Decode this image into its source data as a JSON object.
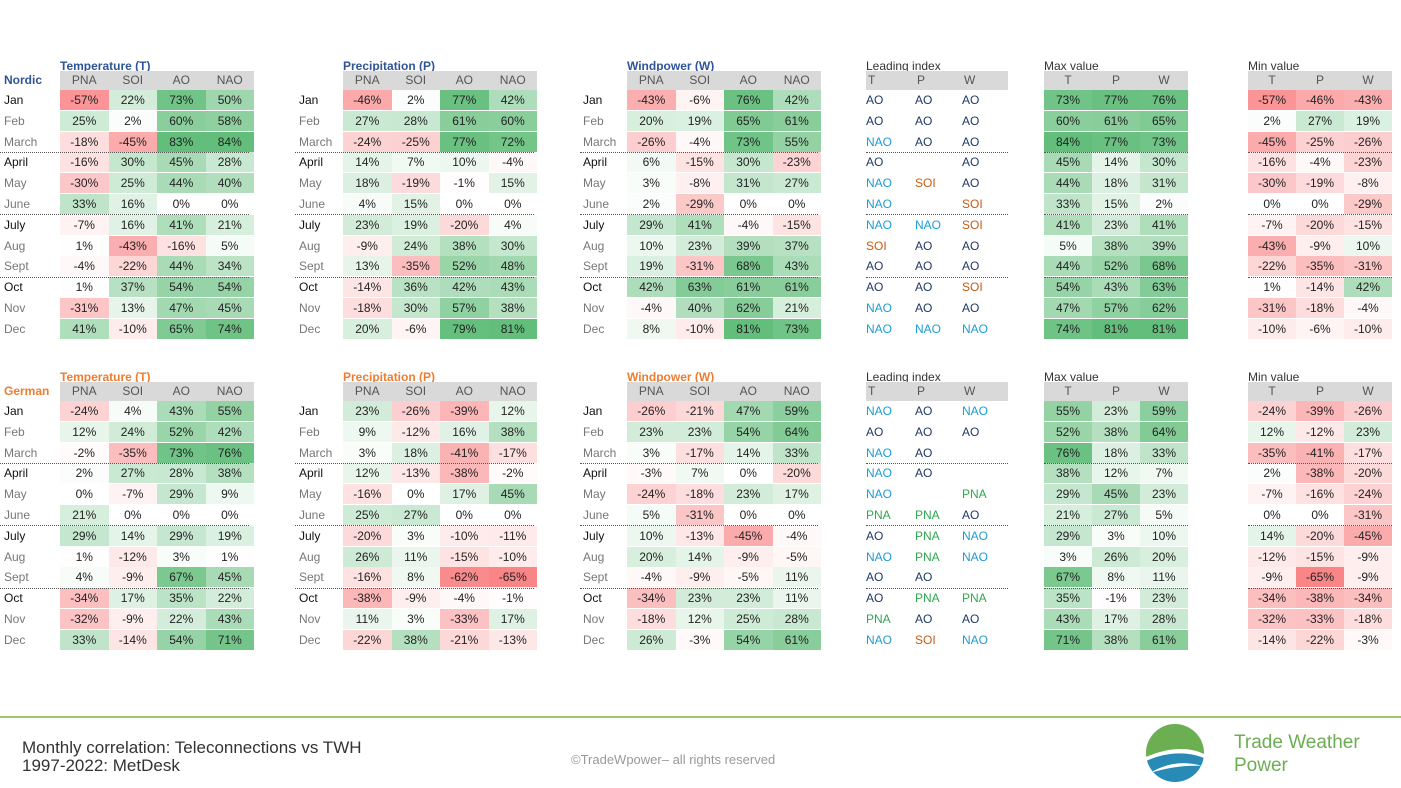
{
  "colors": {
    "positive": "#63be7b",
    "negative": "#f8696b",
    "neutral": "#ffffff",
    "title_nordic": "#2f5597",
    "title_german": "#ed7d31",
    "idx_AO": "#1f3864",
    "idx_NAO": "#1b9bd7",
    "idx_SOI": "#c55a11",
    "idx_PNA": "#2fa84f",
    "accent_line": "#9dc76b",
    "brand": "#6cae52"
  },
  "months": [
    "Jan",
    "Feb",
    "March",
    "April",
    "May",
    "June",
    "July",
    "Aug",
    "Sept",
    "Oct",
    "Nov",
    "Dec"
  ],
  "bold_months": [
    0,
    3,
    6,
    9
  ],
  "index_cols": [
    "PNA",
    "SOI",
    "AO",
    "NAO"
  ],
  "tpw_cols": [
    "T",
    "P",
    "W"
  ],
  "panels": {
    "leading_title": "Leading index",
    "max_title": "Max value",
    "min_title": "Min value"
  },
  "sections": [
    {
      "region": "Nordic",
      "tables": [
        {
          "title": "Temperature (T)",
          "rows": [
            [
              -57,
              22,
              73,
              50
            ],
            [
              25,
              2,
              60,
              58
            ],
            [
              -18,
              -45,
              83,
              84
            ],
            [
              -16,
              30,
              45,
              28
            ],
            [
              -30,
              25,
              44,
              40
            ],
            [
              33,
              16,
              0,
              0
            ],
            [
              -7,
              16,
              41,
              21
            ],
            [
              1,
              -43,
              -16,
              5
            ],
            [
              -4,
              -22,
              44,
              34
            ],
            [
              1,
              37,
              54,
              54
            ],
            [
              -31,
              13,
              47,
              45
            ],
            [
              41,
              -10,
              65,
              74
            ]
          ]
        },
        {
          "title": "Precipitation (P)",
          "rows": [
            [
              -46,
              2,
              77,
              42
            ],
            [
              27,
              28,
              61,
              60
            ],
            [
              -24,
              -25,
              77,
              72
            ],
            [
              14,
              7,
              10,
              -4
            ],
            [
              18,
              -19,
              -1,
              15
            ],
            [
              4,
              15,
              0,
              0
            ],
            [
              23,
              19,
              -20,
              4
            ],
            [
              -9,
              24,
              38,
              30
            ],
            [
              13,
              -35,
              52,
              48
            ],
            [
              -14,
              36,
              42,
              43
            ],
            [
              -18,
              30,
              57,
              38
            ],
            [
              20,
              -6,
              79,
              81
            ]
          ]
        },
        {
          "title": "Windpower (W)",
          "rows": [
            [
              -43,
              -6,
              76,
              42
            ],
            [
              20,
              19,
              65,
              61
            ],
            [
              -26,
              -4,
              73,
              55
            ],
            [
              6,
              -15,
              30,
              -23
            ],
            [
              3,
              -8,
              31,
              27
            ],
            [
              2,
              -29,
              0,
              0
            ],
            [
              29,
              41,
              -4,
              -15
            ],
            [
              10,
              23,
              39,
              37
            ],
            [
              19,
              -31,
              68,
              43
            ],
            [
              42,
              63,
              61,
              61
            ],
            [
              -4,
              40,
              62,
              21
            ],
            [
              8,
              -10,
              81,
              73
            ]
          ]
        }
      ],
      "leading": [
        [
          "AO",
          "AO",
          "AO"
        ],
        [
          "AO",
          "AO",
          "AO"
        ],
        [
          "NAO",
          "AO",
          "AO"
        ],
        [
          "AO",
          "",
          "AO"
        ],
        [
          "NAO",
          "SOI",
          "AO"
        ],
        [
          "NAO",
          "",
          "SOI"
        ],
        [
          "NAO",
          "NAO",
          "SOI"
        ],
        [
          "SOI",
          "AO",
          "AO"
        ],
        [
          "AO",
          "AO",
          "AO"
        ],
        [
          "AO",
          "AO",
          "SOI"
        ],
        [
          "NAO",
          "AO",
          "AO"
        ],
        [
          "NAO",
          "NAO",
          "NAO"
        ]
      ],
      "max": [
        [
          73,
          77,
          76
        ],
        [
          60,
          61,
          65
        ],
        [
          84,
          77,
          73
        ],
        [
          45,
          14,
          30
        ],
        [
          44,
          18,
          31
        ],
        [
          33,
          15,
          2
        ],
        [
          41,
          23,
          41
        ],
        [
          5,
          38,
          39
        ],
        [
          44,
          52,
          68
        ],
        [
          54,
          43,
          63
        ],
        [
          47,
          57,
          62
        ],
        [
          74,
          81,
          81
        ]
      ],
      "min": [
        [
          -57,
          -46,
          -43
        ],
        [
          2,
          27,
          19
        ],
        [
          -45,
          -25,
          -26
        ],
        [
          -16,
          -4,
          -23
        ],
        [
          -30,
          -19,
          -8
        ],
        [
          0,
          0,
          -29
        ],
        [
          -7,
          -20,
          -15
        ],
        [
          -43,
          -9,
          10
        ],
        [
          -22,
          -35,
          -31
        ],
        [
          1,
          -14,
          42
        ],
        [
          -31,
          -18,
          -4
        ],
        [
          -10,
          -6,
          -10
        ]
      ]
    },
    {
      "region": "German",
      "tables": [
        {
          "title": "Temperature (T)",
          "rows": [
            [
              -24,
              4,
              43,
              55
            ],
            [
              12,
              24,
              52,
              42
            ],
            [
              -2,
              -35,
              73,
              76
            ],
            [
              2,
              27,
              28,
              38
            ],
            [
              0,
              -7,
              29,
              9
            ],
            [
              21,
              0,
              0,
              0
            ],
            [
              29,
              14,
              29,
              19
            ],
            [
              1,
              -12,
              3,
              1
            ],
            [
              4,
              -9,
              67,
              45
            ],
            [
              -34,
              17,
              35,
              22
            ],
            [
              -32,
              -9,
              22,
              43
            ],
            [
              33,
              -14,
              54,
              71
            ]
          ]
        },
        {
          "title": "Precipitation (P)",
          "rows": [
            [
              23,
              -26,
              -39,
              12
            ],
            [
              9,
              -12,
              16,
              38
            ],
            [
              3,
              18,
              -41,
              -17
            ],
            [
              12,
              -13,
              -38,
              -2
            ],
            [
              -16,
              0,
              17,
              45
            ],
            [
              25,
              27,
              0,
              0
            ],
            [
              -20,
              3,
              -10,
              -11
            ],
            [
              26,
              11,
              -15,
              -10
            ],
            [
              -16,
              8,
              -62,
              -65
            ],
            [
              -38,
              -9,
              -4,
              -1
            ],
            [
              11,
              3,
              -33,
              17
            ],
            [
              -22,
              38,
              -21,
              -13
            ]
          ]
        },
        {
          "title": "Windpower (W)",
          "rows": [
            [
              -26,
              -21,
              47,
              59
            ],
            [
              23,
              23,
              54,
              64
            ],
            [
              3,
              -17,
              14,
              33
            ],
            [
              -3,
              7,
              0,
              -20
            ],
            [
              -24,
              -18,
              23,
              17
            ],
            [
              5,
              -31,
              0,
              0
            ],
            [
              10,
              -13,
              -45,
              -4
            ],
            [
              20,
              14,
              -9,
              -5
            ],
            [
              -4,
              -9,
              -5,
              11
            ],
            [
              -34,
              23,
              23,
              11
            ],
            [
              -18,
              12,
              25,
              28
            ],
            [
              26,
              -3,
              54,
              61
            ]
          ]
        }
      ],
      "leading": [
        [
          "NAO",
          "AO",
          "NAO"
        ],
        [
          "AO",
          "AO",
          "AO"
        ],
        [
          "NAO",
          "AO",
          ""
        ],
        [
          "NAO",
          "AO",
          ""
        ],
        [
          "NAO",
          "",
          "PNA"
        ],
        [
          "PNA",
          "PNA",
          "AO"
        ],
        [
          "AO",
          "PNA",
          "NAO"
        ],
        [
          "NAO",
          "PNA",
          "NAO"
        ],
        [
          "AO",
          "AO",
          ""
        ],
        [
          "AO",
          "PNA",
          "PNA"
        ],
        [
          "PNA",
          "AO",
          "AO"
        ],
        [
          "NAO",
          "SOI",
          "NAO"
        ]
      ],
      "max": [
        [
          55,
          23,
          59
        ],
        [
          52,
          38,
          64
        ],
        [
          76,
          18,
          33
        ],
        [
          38,
          12,
          7
        ],
        [
          29,
          45,
          23
        ],
        [
          21,
          27,
          5
        ],
        [
          29,
          3,
          10
        ],
        [
          3,
          26,
          20
        ],
        [
          67,
          8,
          11
        ],
        [
          35,
          -1,
          23
        ],
        [
          43,
          17,
          28
        ],
        [
          71,
          38,
          61
        ]
      ],
      "min": [
        [
          -24,
          -39,
          -26
        ],
        [
          12,
          -12,
          23
        ],
        [
          -35,
          -41,
          -17
        ],
        [
          2,
          -38,
          -20
        ],
        [
          -7,
          -16,
          -24
        ],
        [
          0,
          0,
          -31
        ],
        [
          14,
          -20,
          -45
        ],
        [
          -12,
          -15,
          -9
        ],
        [
          -9,
          -65,
          -9
        ],
        [
          -34,
          -38,
          -34
        ],
        [
          -32,
          -33,
          -18
        ],
        [
          -14,
          -22,
          -3
        ]
      ]
    }
  ],
  "footer": {
    "caption_line1": "Monthly correlation: Teleconnections vs TWH",
    "caption_line2": "1997-2022: MetDesk",
    "copyright": "©TradeWpower– all rights reserved",
    "brand_line1": "Trade Weather",
    "brand_line2": "Power"
  }
}
